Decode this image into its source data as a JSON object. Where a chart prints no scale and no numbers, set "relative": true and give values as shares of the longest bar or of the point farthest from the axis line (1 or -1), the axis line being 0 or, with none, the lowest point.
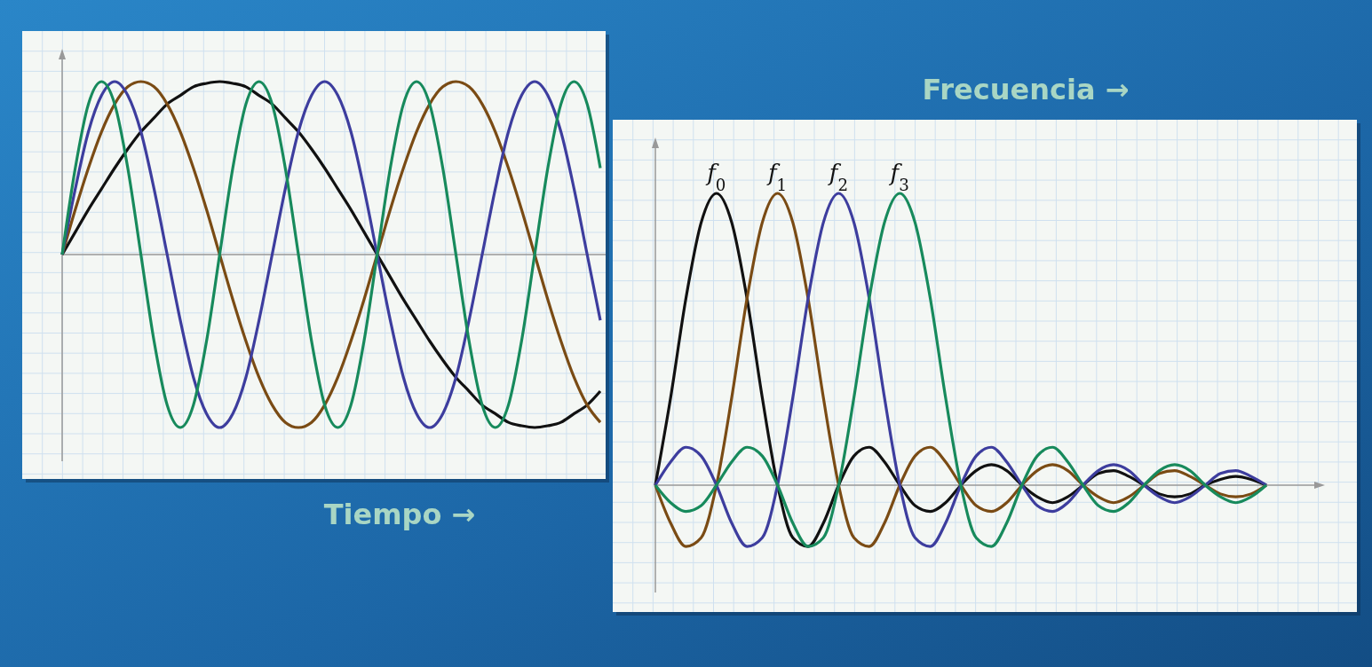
{
  "chart_data": [
    {
      "type": "line",
      "relative": true,
      "grid": true,
      "xlabel": "Tiempo →",
      "categories": [
        null,
        null,
        null,
        null,
        null,
        null,
        null,
        null,
        null,
        null,
        null,
        null,
        null,
        null,
        null,
        null,
        null,
        null,
        null,
        null,
        null,
        null,
        null,
        null,
        null,
        null,
        null,
        null,
        null,
        null,
        null,
        null,
        null,
        null,
        null,
        null,
        null,
        null,
        null,
        null,
        null,
        null
      ],
      "series": [
        {
          "color": "#111111",
          "values": [
            0,
            0.13,
            0.26,
            0.38,
            0.5,
            0.61,
            0.71,
            0.79,
            0.87,
            0.92,
            0.97,
            0.99,
            1,
            0.99,
            0.97,
            0.92,
            0.87,
            0.79,
            0.71,
            0.61,
            0.5,
            0.38,
            0.26,
            0.13,
            0,
            -0.13,
            -0.26,
            -0.38,
            -0.5,
            -0.61,
            -0.71,
            -0.79,
            -0.87,
            -0.92,
            -0.97,
            -0.99,
            -1,
            -0.99,
            -0.97,
            -0.92,
            -0.87,
            -0.79
          ]
        },
        {
          "color": "#7a4b14",
          "values": [
            0,
            0.26,
            0.5,
            0.71,
            0.87,
            0.97,
            1,
            0.97,
            0.87,
            0.71,
            0.5,
            0.26,
            0,
            -0.26,
            -0.5,
            -0.71,
            -0.87,
            -0.97,
            -1,
            -0.97,
            -0.87,
            -0.71,
            -0.5,
            -0.26,
            0,
            0.26,
            0.5,
            0.71,
            0.87,
            0.97,
            1,
            0.97,
            0.87,
            0.71,
            0.5,
            0.26,
            0,
            -0.26,
            -0.5,
            -0.71,
            -0.87,
            -0.97
          ]
        },
        {
          "color": "#3d3d9e",
          "values": [
            0,
            0.38,
            0.71,
            0.92,
            1,
            0.92,
            0.71,
            0.38,
            0,
            -0.38,
            -0.71,
            -0.92,
            -1,
            -0.92,
            -0.71,
            -0.38,
            0,
            0.38,
            0.71,
            0.92,
            1,
            0.92,
            0.71,
            0.38,
            0,
            -0.38,
            -0.71,
            -0.92,
            -1,
            -0.92,
            -0.71,
            -0.38,
            0,
            0.38,
            0.71,
            0.92,
            1,
            0.92,
            0.71,
            0.38,
            0,
            -0.38
          ]
        },
        {
          "color": "#178a5c",
          "values": [
            0,
            0.5,
            0.87,
            1,
            0.87,
            0.5,
            0,
            -0.5,
            -0.87,
            -1,
            -0.87,
            -0.5,
            0,
            0.5,
            0.87,
            1,
            0.87,
            0.5,
            0,
            -0.5,
            -0.87,
            -1,
            -0.87,
            -0.5,
            0,
            0.5,
            0.87,
            1,
            0.87,
            0.5,
            0,
            -0.5,
            -0.87,
            -1,
            -0.87,
            -0.5,
            0,
            0.5,
            0.87,
            1,
            0.87,
            0.5
          ]
        }
      ]
    },
    {
      "type": "line",
      "relative": true,
      "grid": true,
      "xlabel": "Frecuencia →",
      "categories": [
        null,
        null,
        null,
        null,
        null,
        null,
        null,
        null,
        null,
        null,
        null,
        null,
        null,
        null,
        null,
        null,
        null,
        null,
        null,
        null,
        null,
        null,
        null,
        null,
        null,
        null,
        null,
        null,
        null,
        null,
        null,
        null,
        null,
        null,
        null,
        null,
        null,
        null,
        null,
        null,
        null
      ],
      "series": [
        {
          "name": "f$_{0}$",
          "color": "#111111",
          "values": [
            0,
            0.3,
            0.64,
            0.9,
            1,
            0.9,
            0.64,
            0.3,
            0,
            -0.18,
            -0.21,
            -0.13,
            0,
            0.1,
            0.13,
            0.08,
            0,
            -0.07,
            -0.09,
            -0.06,
            0,
            0.05,
            0.07,
            0.05,
            0,
            -0.04,
            -0.06,
            -0.04,
            0,
            0.04,
            0.05,
            0.03,
            0,
            -0.03,
            -0.04,
            -0.03,
            0,
            0.02,
            0.03,
            0.02,
            0
          ]
        },
        {
          "name": "f$_{1}$",
          "color": "#7a4b14",
          "values": [
            0,
            -0.13,
            -0.21,
            -0.18,
            0,
            0.3,
            0.64,
            0.9,
            1,
            0.9,
            0.64,
            0.3,
            0,
            -0.18,
            -0.21,
            -0.13,
            0,
            0.1,
            0.13,
            0.08,
            0,
            -0.07,
            -0.09,
            -0.06,
            0,
            0.05,
            0.07,
            0.05,
            0,
            -0.04,
            -0.06,
            -0.04,
            0,
            0.04,
            0.05,
            0.03,
            0,
            -0.03,
            -0.04,
            -0.03,
            0
          ]
        },
        {
          "name": "f$_{2}$",
          "color": "#3d3d9e",
          "values": [
            0,
            0.08,
            0.13,
            0.1,
            0,
            -0.13,
            -0.21,
            -0.18,
            0,
            0.3,
            0.64,
            0.9,
            1,
            0.9,
            0.64,
            0.3,
            0,
            -0.18,
            -0.21,
            -0.13,
            0,
            0.1,
            0.13,
            0.08,
            0,
            -0.07,
            -0.09,
            -0.06,
            0,
            0.05,
            0.07,
            0.05,
            0,
            -0.04,
            -0.06,
            -0.04,
            0,
            0.04,
            0.05,
            0.03,
            0
          ]
        },
        {
          "name": "f$_{3}$",
          "color": "#178a5c",
          "values": [
            0,
            -0.06,
            -0.09,
            -0.07,
            0,
            0.08,
            0.13,
            0.1,
            0,
            -0.13,
            -0.21,
            -0.18,
            0,
            0.3,
            0.64,
            0.9,
            1,
            0.9,
            0.64,
            0.3,
            0,
            -0.18,
            -0.21,
            -0.13,
            0,
            0.1,
            0.13,
            0.08,
            0,
            -0.07,
            -0.09,
            -0.06,
            0,
            0.05,
            0.07,
            0.05,
            0,
            -0.04,
            -0.06,
            -0.04,
            0
          ]
        }
      ]
    }
  ]
}
